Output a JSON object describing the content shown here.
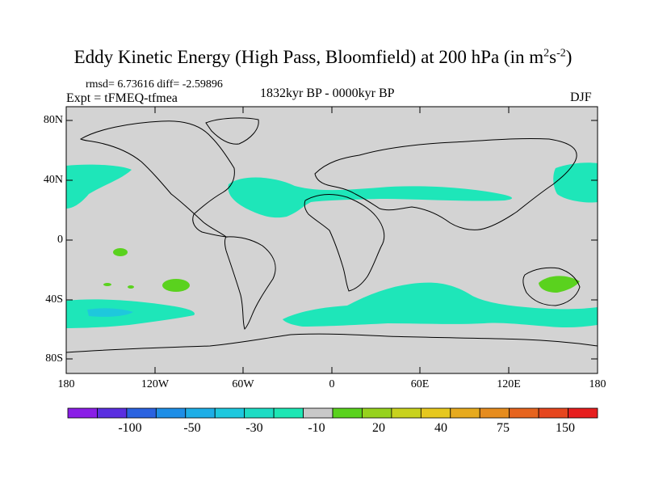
{
  "title": "Eddy Kinetic Energy (High Pass, Bloomfield) at 200 hPa (in m",
  "title_sup1": "2",
  "title_mid": "s",
  "title_sup2": "-2",
  "title_end": ")",
  "stats": "rmsd= 6.73616 diff= -2.59896",
  "experiment": "Expt = tFMEQ-tfmea",
  "period": "1832kyr BP - 0000kyr BP",
  "season": "DJF",
  "lat_labels": [
    "80N",
    "40N",
    "0",
    "40S",
    "80S"
  ],
  "lon_labels": [
    "180",
    "120W",
    "60W",
    "0",
    "60E",
    "120E",
    "180"
  ],
  "colorbar": {
    "labels": [
      "-100",
      "-50",
      "-30",
      "-10",
      "20",
      "40",
      "75",
      "150"
    ],
    "colors": [
      "#8a1ee6",
      "#5a2ee0",
      "#2a62e0",
      "#1e8ee6",
      "#1eaee6",
      "#1ec8de",
      "#1edcc4",
      "#1ee6b4",
      "#c8c8c8",
      "#5ad21e",
      "#96d21e",
      "#c8d21e",
      "#e6c81e",
      "#e6aa1e",
      "#e68c1e",
      "#e6641e",
      "#e6461e",
      "#e61e1e"
    ]
  },
  "colors": {
    "land_ocean": "#d3d3d3",
    "cyan_anomaly": "#1ee6b9",
    "blue_anomaly": "#1ec8dc",
    "green_anomaly": "#5ad21e"
  }
}
